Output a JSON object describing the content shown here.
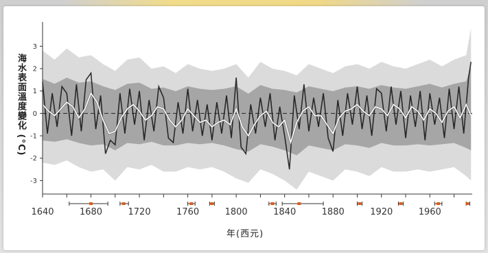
{
  "chart_data": {
    "type": "line",
    "title": "",
    "xlabel": "年(西元)",
    "ylabel": "海水表面溫度變化 (°C)",
    "xlim": [
      1640,
      1995
    ],
    "ylim": [
      -3.6,
      3.9
    ],
    "x_ticks": [
      1640,
      1680,
      1720,
      1760,
      1800,
      1840,
      1880,
      1920,
      1960
    ],
    "x_tick_labels": [
      "1640",
      "1680",
      "1720",
      "1760",
      "1800",
      "1840",
      "1880",
      "1920",
      "1960"
    ],
    "y_ticks": [
      -3,
      -2,
      -1,
      0,
      1,
      2,
      3
    ],
    "y_tick_labels": [
      "-3",
      "-2",
      "-1",
      "0",
      "1",
      "2",
      "3"
    ],
    "reference_line": 0,
    "series": [
      {
        "role": "smoothed",
        "color": "#ffffff",
        "x": [
          1640,
          1645,
          1650,
          1655,
          1660,
          1665,
          1670,
          1675,
          1680,
          1685,
          1690,
          1695,
          1700,
          1705,
          1710,
          1715,
          1720,
          1725,
          1730,
          1735,
          1740,
          1745,
          1750,
          1755,
          1760,
          1765,
          1770,
          1775,
          1780,
          1785,
          1790,
          1795,
          1800,
          1805,
          1810,
          1815,
          1820,
          1825,
          1830,
          1835,
          1840,
          1845,
          1850,
          1855,
          1860,
          1865,
          1870,
          1875,
          1880,
          1885,
          1890,
          1895,
          1900,
          1905,
          1910,
          1915,
          1920,
          1925,
          1930,
          1935,
          1940,
          1945,
          1950,
          1955,
          1960,
          1965,
          1970,
          1975,
          1980,
          1985,
          1990,
          1994
        ],
        "values": [
          0.4,
          0.1,
          -0.1,
          0.2,
          0.5,
          0.3,
          -0.2,
          0.2,
          0.9,
          0.5,
          -0.3,
          -0.9,
          -0.8,
          -0.2,
          0.2,
          0.4,
          0.1,
          -0.3,
          -0.1,
          0.3,
          0.2,
          -0.3,
          -0.6,
          -0.3,
          0.2,
          -0.1,
          -0.4,
          -0.3,
          -0.6,
          -0.4,
          -0.3,
          -0.5,
          0.2,
          -0.6,
          -1.0,
          -0.5,
          -0.1,
          0.1,
          -0.4,
          -0.6,
          -0.3,
          -1.3,
          -0.4,
          0.1,
          0.3,
          -0.1,
          -0.1,
          -0.5,
          -0.9,
          -0.2,
          0.1,
          0.2,
          0.4,
          0.1,
          -0.1,
          0.3,
          0.2,
          -0.1,
          0.4,
          0.2,
          -0.2,
          0.3,
          0.1,
          -0.3,
          0.2,
          0.0,
          -0.4,
          0.1,
          0.3,
          -0.2,
          0.4,
          -0.1
        ]
      },
      {
        "role": "annual",
        "color": "#111111",
        "x": [
          1640,
          1644,
          1648,
          1652,
          1656,
          1660,
          1664,
          1668,
          1672,
          1676,
          1680,
          1684,
          1688,
          1692,
          1696,
          1700,
          1704,
          1708,
          1712,
          1716,
          1720,
          1724,
          1728,
          1732,
          1736,
          1740,
          1744,
          1748,
          1752,
          1756,
          1760,
          1764,
          1768,
          1772,
          1776,
          1780,
          1784,
          1788,
          1792,
          1796,
          1800,
          1804,
          1808,
          1812,
          1816,
          1820,
          1824,
          1828,
          1832,
          1836,
          1840,
          1844,
          1848,
          1852,
          1856,
          1860,
          1864,
          1868,
          1872,
          1876,
          1880,
          1884,
          1888,
          1892,
          1896,
          1900,
          1904,
          1908,
          1912,
          1916,
          1920,
          1924,
          1928,
          1932,
          1936,
          1940,
          1944,
          1948,
          1952,
          1956,
          1960,
          1964,
          1968,
          1972,
          1976,
          1980,
          1984,
          1988,
          1992,
          1994
        ],
        "values": [
          1.4,
          -0.9,
          0.9,
          -0.6,
          1.2,
          0.9,
          -1.0,
          1.3,
          -0.8,
          1.5,
          1.8,
          -0.7,
          0.8,
          -1.8,
          -1.2,
          -1.4,
          0.9,
          -0.9,
          1.1,
          -0.5,
          1.0,
          -1.2,
          0.6,
          -0.8,
          1.2,
          0.7,
          -1.1,
          -1.3,
          0.5,
          -0.9,
          1.1,
          -0.8,
          0.6,
          -1.0,
          0.4,
          -1.2,
          0.5,
          -0.9,
          0.8,
          -1.1,
          1.6,
          -1.5,
          -1.8,
          0.4,
          -0.9,
          0.7,
          -0.6,
          0.9,
          -1.2,
          0.3,
          -1.0,
          -2.5,
          0.8,
          -0.7,
          1.3,
          -0.8,
          0.7,
          -0.6,
          0.9,
          -1.1,
          -1.7,
          0.6,
          -1.0,
          0.9,
          -0.5,
          1.2,
          -0.7,
          0.8,
          -1.0,
          1.1,
          0.9,
          -0.8,
          1.2,
          -0.5,
          1.0,
          -1.1,
          0.8,
          -0.6,
          1.0,
          -1.2,
          0.9,
          -0.5,
          0.7,
          -1.1,
          1.1,
          -0.7,
          1.2,
          -0.9,
          1.6,
          2.3
        ]
      }
    ],
    "spread_band": {
      "color": "#bdbdbd",
      "x": [
        1640,
        1650,
        1660,
        1670,
        1680,
        1690,
        1700,
        1710,
        1720,
        1730,
        1740,
        1750,
        1760,
        1770,
        1780,
        1790,
        1800,
        1810,
        1820,
        1830,
        1840,
        1850,
        1860,
        1870,
        1880,
        1890,
        1900,
        1910,
        1920,
        1930,
        1940,
        1950,
        1960,
        1970,
        1980,
        1990,
        1994
      ],
      "upper": [
        2.8,
        2.4,
        2.9,
        2.5,
        2.6,
        2.2,
        1.9,
        2.4,
        2.5,
        2.0,
        2.1,
        1.8,
        2.2,
        2.0,
        1.9,
        2.0,
        2.2,
        1.6,
        2.3,
        2.0,
        1.9,
        1.7,
        2.2,
        2.0,
        1.8,
        2.1,
        2.2,
        2.0,
        2.3,
        2.1,
        2.0,
        2.2,
        2.4,
        2.1,
        2.4,
        2.6,
        3.8
      ],
      "lower": [
        -2.2,
        -2.3,
        -2.1,
        -2.4,
        -2.6,
        -2.5,
        -3.0,
        -2.4,
        -2.5,
        -2.3,
        -2.6,
        -2.6,
        -2.4,
        -2.5,
        -2.4,
        -2.6,
        -2.9,
        -3.1,
        -2.5,
        -2.7,
        -3.0,
        -3.4,
        -2.6,
        -2.8,
        -3.0,
        -2.5,
        -2.6,
        -2.8,
        -2.4,
        -2.6,
        -2.6,
        -2.5,
        -2.6,
        -2.5,
        -2.4,
        -2.8,
        -3.0
      ]
    },
    "calibration_intervals": [
      {
        "center": 1680,
        "start": 1662,
        "end": 1694
      },
      {
        "center": 1707,
        "start": 1704,
        "end": 1711
      },
      {
        "center": 1763,
        "start": 1760,
        "end": 1766
      },
      {
        "center": 1780,
        "start": 1778,
        "end": 1782
      },
      {
        "center": 1830,
        "start": 1827,
        "end": 1833
      },
      {
        "center": 1852,
        "start": 1838,
        "end": 1872
      },
      {
        "center": 1902,
        "start": 1900,
        "end": 1904
      },
      {
        "center": 1936,
        "start": 1934,
        "end": 1938
      },
      {
        "center": 1967,
        "start": 1964,
        "end": 1970
      },
      {
        "center": 1991,
        "start": 1990,
        "end": 1993
      }
    ],
    "interval_color": "#e05a1a",
    "axis_color": "#333333",
    "grid": false
  }
}
